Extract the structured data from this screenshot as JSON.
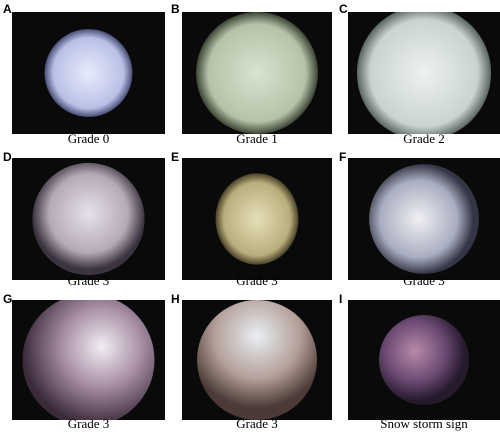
{
  "panels": [
    {
      "letter": "A",
      "caption": "Grade 0"
    },
    {
      "letter": "B",
      "caption": "Grade 1"
    },
    {
      "letter": "C",
      "caption": "Grade 2"
    },
    {
      "letter": "D",
      "caption": "Grade 3"
    },
    {
      "letter": "E",
      "caption": "Grade 3"
    },
    {
      "letter": "F",
      "caption": "Grade 3"
    },
    {
      "letter": "G",
      "caption": "Grade 3"
    },
    {
      "letter": "H",
      "caption": "Grade 3"
    },
    {
      "letter": "I",
      "caption": "Snow storm sign"
    }
  ]
}
